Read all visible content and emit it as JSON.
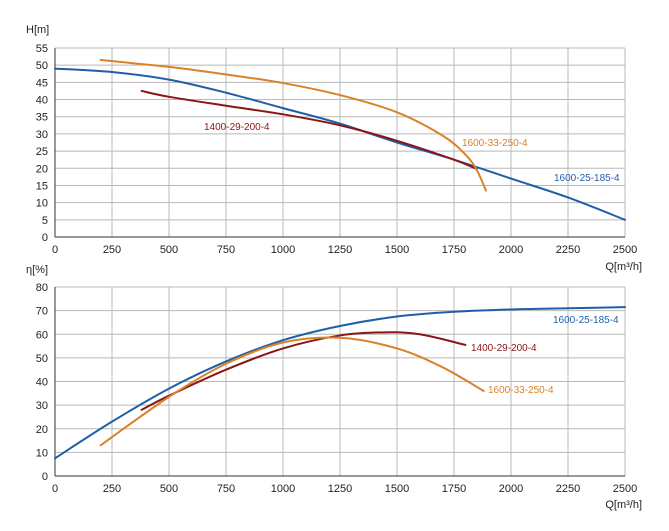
{
  "colors": {
    "1600-25-185-4": "#1f5fa8",
    "1400-29-200-4": "#8c1515",
    "1600-33-250-4": "#d9822b"
  },
  "chart_data": [
    {
      "type": "line",
      "ylabel": "H[m]",
      "xlabel": "Q[m³/h]",
      "xlim": [
        0,
        2500
      ],
      "ylim": [
        0,
        55
      ],
      "xticks": [
        0,
        250,
        500,
        750,
        1000,
        1250,
        1500,
        1750,
        2000,
        2250,
        2500
      ],
      "yticks": [
        0,
        5,
        10,
        15,
        20,
        25,
        30,
        35,
        40,
        45,
        50,
        55
      ],
      "grid": true,
      "series": [
        {
          "name": "1600-25-185-4",
          "x": [
            0,
            250,
            500,
            750,
            1000,
            1250,
            1500,
            1750,
            2000,
            2250,
            2500
          ],
          "y": [
            49,
            48,
            45.8,
            42,
            37.5,
            33,
            27.5,
            22.5,
            17,
            11.5,
            5
          ]
        },
        {
          "name": "1400-29-200-4",
          "x": [
            380,
            500,
            750,
            1000,
            1250,
            1500,
            1750,
            1850
          ],
          "y": [
            42.5,
            40.8,
            38.2,
            35.7,
            32.5,
            28,
            22.5,
            19.8
          ]
        },
        {
          "name": "1600-33-250-4",
          "x": [
            200,
            500,
            750,
            1000,
            1250,
            1500,
            1700,
            1800,
            1850,
            1890
          ],
          "y": [
            51.5,
            49.5,
            47.3,
            44.8,
            41.3,
            36.3,
            29.5,
            24,
            19.5,
            13.5
          ]
        }
      ]
    },
    {
      "type": "line",
      "ylabel": "η[%]",
      "xlabel": "Q[m³/h]",
      "xlim": [
        0,
        2500
      ],
      "ylim": [
        0,
        80
      ],
      "xticks": [
        0,
        250,
        500,
        750,
        1000,
        1250,
        1500,
        1750,
        2000,
        2250,
        2500
      ],
      "yticks": [
        0,
        10,
        20,
        30,
        40,
        50,
        60,
        70,
        80
      ],
      "grid": true,
      "series": [
        {
          "name": "1600-25-185-4",
          "x": [
            0,
            250,
            500,
            750,
            1000,
            1250,
            1500,
            1750,
            2000,
            2250,
            2500
          ],
          "y": [
            7.5,
            23,
            37,
            48.5,
            57.5,
            63.5,
            67.5,
            69.5,
            70.5,
            71,
            71.5
          ]
        },
        {
          "name": "1400-29-200-4",
          "x": [
            380,
            500,
            750,
            1000,
            1250,
            1450,
            1600,
            1800
          ],
          "y": [
            28,
            34,
            45,
            54,
            59.5,
            60.8,
            60,
            55.5
          ]
        },
        {
          "name": "1600-33-250-4",
          "x": [
            200,
            500,
            750,
            1000,
            1250,
            1500,
            1700,
            1880
          ],
          "y": [
            13,
            33.5,
            47.5,
            56.5,
            58.5,
            54,
            46,
            36
          ]
        }
      ]
    }
  ]
}
